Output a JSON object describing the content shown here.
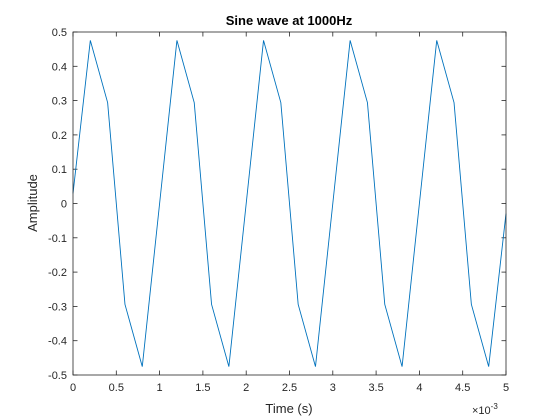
{
  "chart_data": {
    "type": "line",
    "title": "Sine wave at 1000Hz",
    "xlabel": "Time (s)",
    "ylabel": "Amplitude",
    "x_exponent_base": "×10",
    "x_exponent_power": "-3",
    "xlim": [
      0,
      5
    ],
    "ylim": [
      -0.5,
      0.5
    ],
    "x_ticks": [
      0,
      0.5,
      1,
      1.5,
      2,
      2.5,
      3,
      3.5,
      4,
      4.5,
      5
    ],
    "x_tick_labels": [
      "0",
      "0.5",
      "1",
      "1.5",
      "2",
      "2.5",
      "3",
      "3.5",
      "4",
      "4.5",
      "5"
    ],
    "y_ticks": [
      -0.5,
      -0.4,
      -0.3,
      -0.2,
      -0.1,
      0,
      0.1,
      0.2,
      0.3,
      0.4,
      0.5
    ],
    "y_tick_labels": [
      "-0.5",
      "-0.4",
      "-0.3",
      "-0.2",
      "-0.1",
      "0",
      "0.1",
      "0.2",
      "0.3",
      "0.4",
      "0.5"
    ],
    "grid": false,
    "line_color": "#0072BD",
    "series": [
      {
        "x": [
          0,
          0.2,
          0.4,
          0.6,
          0.8,
          1.0,
          1.2,
          1.4,
          1.6,
          1.8,
          2.0,
          2.2,
          2.4,
          2.6,
          2.8,
          3.0,
          3.2,
          3.4,
          3.6,
          3.8,
          4.0,
          4.2,
          4.4,
          4.6,
          4.8,
          5.0
        ],
        "values": [
          0.0294,
          0.4755,
          0.2939,
          -0.2939,
          -0.4755,
          0.0,
          0.4755,
          0.2939,
          -0.2939,
          -0.4755,
          0.0,
          0.4755,
          0.2939,
          -0.2939,
          -0.4755,
          0.0,
          0.4755,
          0.2939,
          -0.2939,
          -0.4755,
          0.0,
          0.4755,
          0.2939,
          -0.2939,
          -0.4755,
          -0.0294
        ]
      }
    ]
  }
}
